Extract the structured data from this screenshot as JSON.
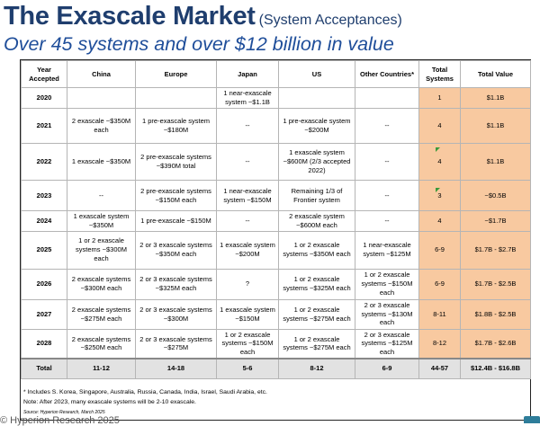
{
  "title": {
    "main": "The Exascale Market",
    "sub": "(System Acceptances)",
    "subtitle": "Over 45 systems and over $12 billion in value"
  },
  "table": {
    "headers": {
      "year_line1": "Year",
      "year_line2": "Accepted",
      "china": "China",
      "europe": "Europe",
      "japan": "Japan",
      "us": "US",
      "other": "Other Countries*",
      "total_systems_line1": "Total",
      "total_systems_line2": "Systems",
      "total_value": "Total Value"
    },
    "rows": [
      {
        "year": "2020",
        "china": "",
        "europe": "",
        "japan": "1 near-exascale system ~$1.1B",
        "us": "",
        "other": "",
        "systems": "1",
        "value": "$1.1B"
      },
      {
        "year": "2021",
        "china": "2 exascale ~$350M each",
        "europe": "1 pre-exascale system ~$180M",
        "japan": "--",
        "us": "1 pre-exascale system ~$200M",
        "other": "--",
        "systems": "4",
        "value": "$1.1B"
      },
      {
        "year": "2022",
        "china": "1 exascale ~$350M",
        "europe": "2 pre-exascale systems ~$390M total",
        "japan": "--",
        "us": "1 exascale system ~$600M (2/3 accepted 2022)",
        "other": "--",
        "systems": "4",
        "value": "$1.1B"
      },
      {
        "year": "2023",
        "china": "--",
        "europe": "2 pre-exascale systems ~$150M each",
        "japan": "1 near-exascale system ~$150M",
        "us": "Remaining 1/3 of Frontier system",
        "other": "--",
        "systems": "3",
        "value": "~$0.5B"
      },
      {
        "year": "2024",
        "china": "1 exascale system ~$350M",
        "europe": "1 pre-exascale ~$150M",
        "japan": "--",
        "us": "2 exascale system ~$600M each",
        "other": "--",
        "systems": "4",
        "value": "~$1.7B"
      },
      {
        "year": "2025",
        "china": "1 or 2 exascale systems ~$300M each",
        "europe": "2 or 3 exascale systems ~$350M each",
        "japan": "1 exascale system ~$200M",
        "us": "1 or 2 exascale systems ~$350M each",
        "other": "1 near-exascale system ~$125M",
        "systems": "6-9",
        "value": "$1.7B - $2.7B"
      },
      {
        "year": "2026",
        "china": "2 exascale systems ~$300M each",
        "europe": "2 or 3 exascale systems ~$325M each",
        "japan": "?",
        "us": "1 or 2 exascale systems ~$325M each",
        "other": "1 or 2 exascale systems ~$150M each",
        "systems": "6-9",
        "value": "$1.7B - $2.5B"
      },
      {
        "year": "2027",
        "china": "2 exascale systems ~$275M each",
        "europe": "2 or 3 exascale systems ~$300M",
        "japan": "1 exascale system ~$150M",
        "us": "1 or 2 exascale systems ~$275M each",
        "other": "2 or 3 exascale systems ~$130M each",
        "systems": "8-11",
        "value": "$1.8B - $2.5B"
      },
      {
        "year": "2028",
        "china": "2 exascale systems ~$250M each",
        "europe": "2 or 3 exascale systems ~$275M",
        "japan": "1 or 2 exascale systems ~$150M each",
        "us": "1 or 2 exascale systems ~$275M each",
        "other": "2 or 3 exascale systems ~$125M each",
        "systems": "8-12",
        "value": "$1.7B - $2.6B"
      }
    ],
    "total": {
      "label": "Total",
      "china": "11-12",
      "europe": "14-18",
      "japan": "5-6",
      "us": "8-12",
      "other": "6-9",
      "systems": "44-57",
      "value": "$12.4B - $16.8B"
    }
  },
  "notes": {
    "footnote": "* Includes S. Korea, Singapore, Australia, Russia, Canada, India, Israel, Saudi Arabia, etc.",
    "note": "Note: After 2023, many exascale systems will be 2-10 exascale.",
    "source": "Source: Hyperion Research, March 2025"
  },
  "footer": {
    "copyright": "© Hyperion Research 2025"
  },
  "colors": {
    "title": "#1f3e6e",
    "subtitle": "#1f4e9a",
    "highlight": "#f8c9a0",
    "total_row": "#e2e2e2",
    "marker": "#3a9a3a"
  }
}
